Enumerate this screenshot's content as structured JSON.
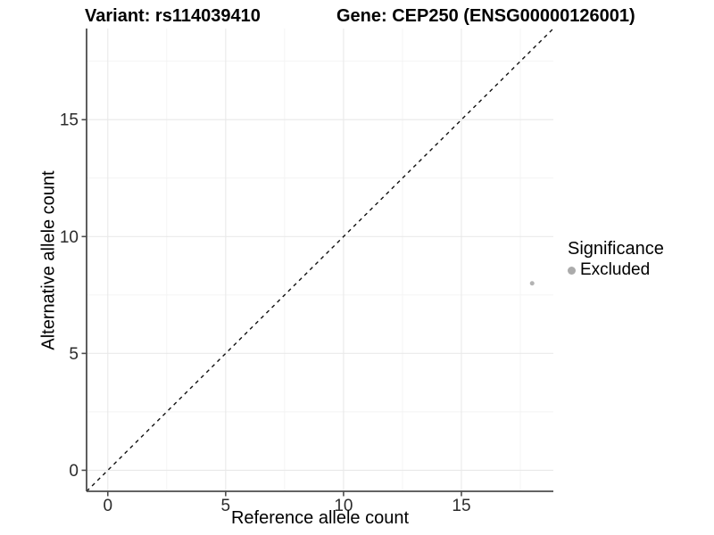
{
  "chart_data": {
    "type": "scatter",
    "titles": {
      "left": "Variant: rs114039410",
      "right": "Gene: CEP250 (ENSG00000126001)"
    },
    "xlabel": "Reference allele count",
    "ylabel": "Alternative allele count",
    "xlim": [
      -0.9,
      18.9
    ],
    "ylim": [
      -0.9,
      18.9
    ],
    "xticks": [
      0,
      5,
      10,
      15
    ],
    "yticks": [
      0,
      5,
      10,
      15
    ],
    "xticks_minor": [
      2.5,
      7.5,
      12.5,
      17.5
    ],
    "yticks_minor": [
      2.5,
      7.5,
      12.5,
      17.5
    ],
    "grid": true,
    "series": [
      {
        "name": "Excluded",
        "color": "#b3b3b3",
        "points": [
          {
            "x": 18,
            "y": 8
          }
        ]
      }
    ],
    "identity_line": {
      "equation": "y = x",
      "style": "dashed",
      "color": "#111111"
    },
    "legend": {
      "position": "right",
      "title": "Significance",
      "items": [
        {
          "label": "Excluded",
          "color": "#ababab"
        }
      ]
    },
    "colors": {
      "background": "#ffffff",
      "axis_line": "#4d4d4d",
      "tick_mark": "#4d4d4d",
      "tick_label": "#2b2b2b",
      "grid_major": "#e9e9e9",
      "grid_minor": "#f3f3f3",
      "point": "#b3b3b3"
    }
  }
}
